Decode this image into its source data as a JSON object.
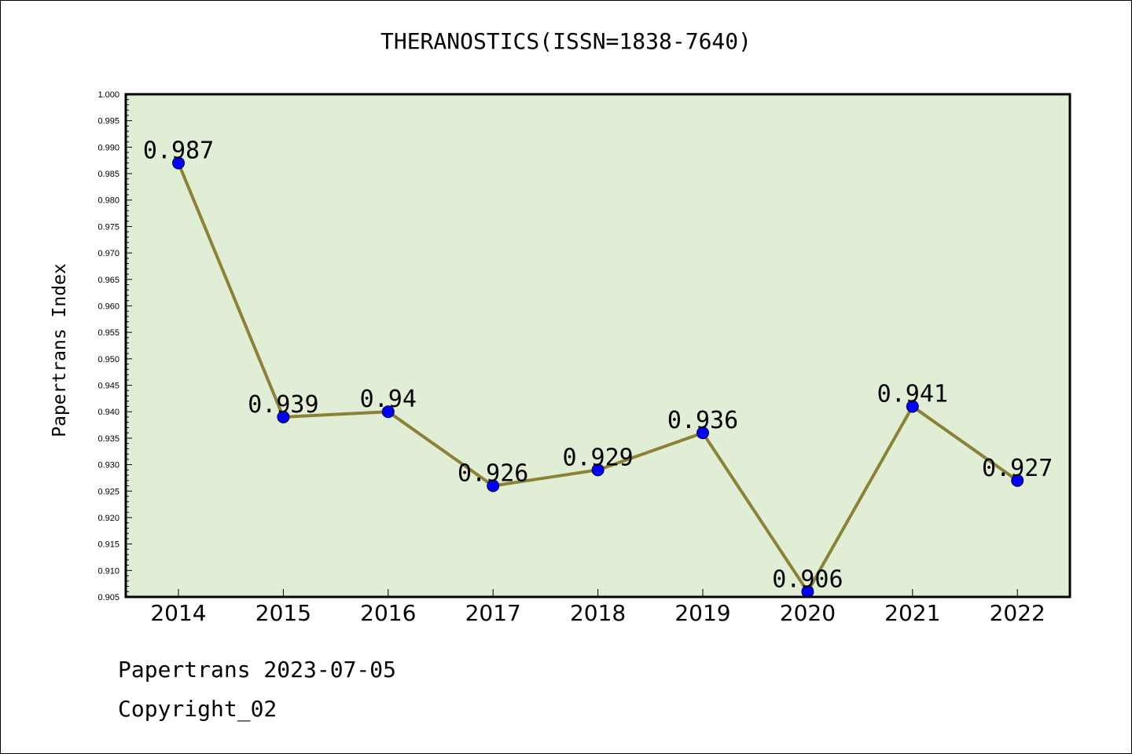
{
  "chart_data": {
    "type": "line",
    "title": "THERANOSTICS(ISSN=1838-7640)",
    "xlabel": "",
    "ylabel": "Papertrans Index",
    "categories": [
      "2014",
      "2015",
      "2016",
      "2017",
      "2018",
      "2019",
      "2020",
      "2021",
      "2022"
    ],
    "series": [
      {
        "values": [
          0.987,
          0.939,
          0.94,
          0.926,
          0.929,
          0.936,
          0.906,
          0.941,
          0.927
        ],
        "labels": [
          "0.987",
          "0.939",
          "0.94",
          "0.926",
          "0.929",
          "0.936",
          "0.906",
          "0.941",
          "0.927"
        ]
      }
    ],
    "ylim": [
      0.905,
      1.0
    ],
    "yticks": [
      "0.905",
      "0.910",
      "0.915",
      "0.920",
      "0.925",
      "0.930",
      "0.935",
      "0.940",
      "0.945",
      "0.950",
      "0.955",
      "0.960",
      "0.965",
      "0.970",
      "0.975",
      "0.980",
      "0.985",
      "0.990",
      "0.995",
      "1.000"
    ],
    "grid": false,
    "legend": "none"
  },
  "footer": {
    "date_line": "Papertrans 2023-07-05",
    "copyright": "Copyright_02"
  },
  "colors": {
    "plot_background": "#e1eed6",
    "line": "#8b8237",
    "marker": "#0000ff",
    "axis": "#000000"
  }
}
